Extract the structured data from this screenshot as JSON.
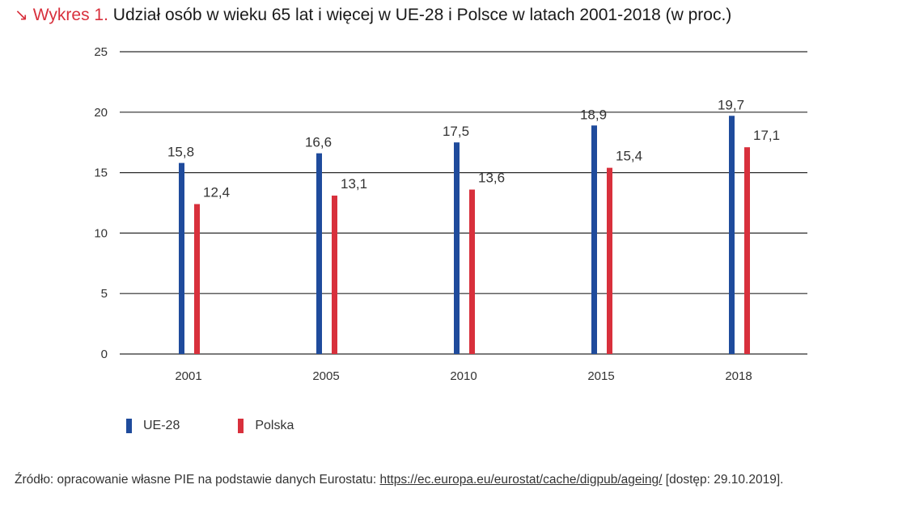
{
  "title": {
    "arrow": "↘",
    "prefix": "Wykres 1.",
    "text": "Udział osób w wieku 65 lat i więcej w UE-28 i Polsce w latach 2001-2018 (w proc.)"
  },
  "colors": {
    "ue": "#1f4b9c",
    "pl": "#d8303c",
    "title_accent": "#d8303c"
  },
  "chart_data": {
    "type": "bar",
    "title": "Udział osób w wieku 65 lat i więcej w UE-28 i Polsce w latach 2001-2018 (w proc.)",
    "categories": [
      "2001",
      "2005",
      "2010",
      "2015",
      "2018"
    ],
    "series": [
      {
        "name": "UE-28",
        "values": [
          15.8,
          16.6,
          17.5,
          18.9,
          19.7
        ],
        "labels": [
          "15,8",
          "16,6",
          "17,5",
          "18,9",
          "19,7"
        ],
        "color": "#1f4b9c"
      },
      {
        "name": "Polska",
        "values": [
          12.4,
          13.1,
          13.6,
          15.4,
          17.1
        ],
        "labels": [
          "12,4",
          "13,1",
          "13,6",
          "15,4",
          "17,1"
        ],
        "color": "#d8303c"
      }
    ],
    "yticks": [
      0,
      5,
      10,
      15,
      20,
      25
    ],
    "ylim": [
      0,
      25
    ],
    "xlabel": "",
    "ylabel": "",
    "grid": true,
    "legend": "bottom-left"
  },
  "legend": {
    "ue_label": "UE-28",
    "pl_label": "Polska"
  },
  "source": {
    "prefix": "Źródło: opracowanie własne PIE na podstawie danych Eurostatu: ",
    "link": "https://ec.europa.eu/eurostat/cache/digpub/ageing/",
    "suffix": " [dostęp: 29.10.2019]."
  }
}
